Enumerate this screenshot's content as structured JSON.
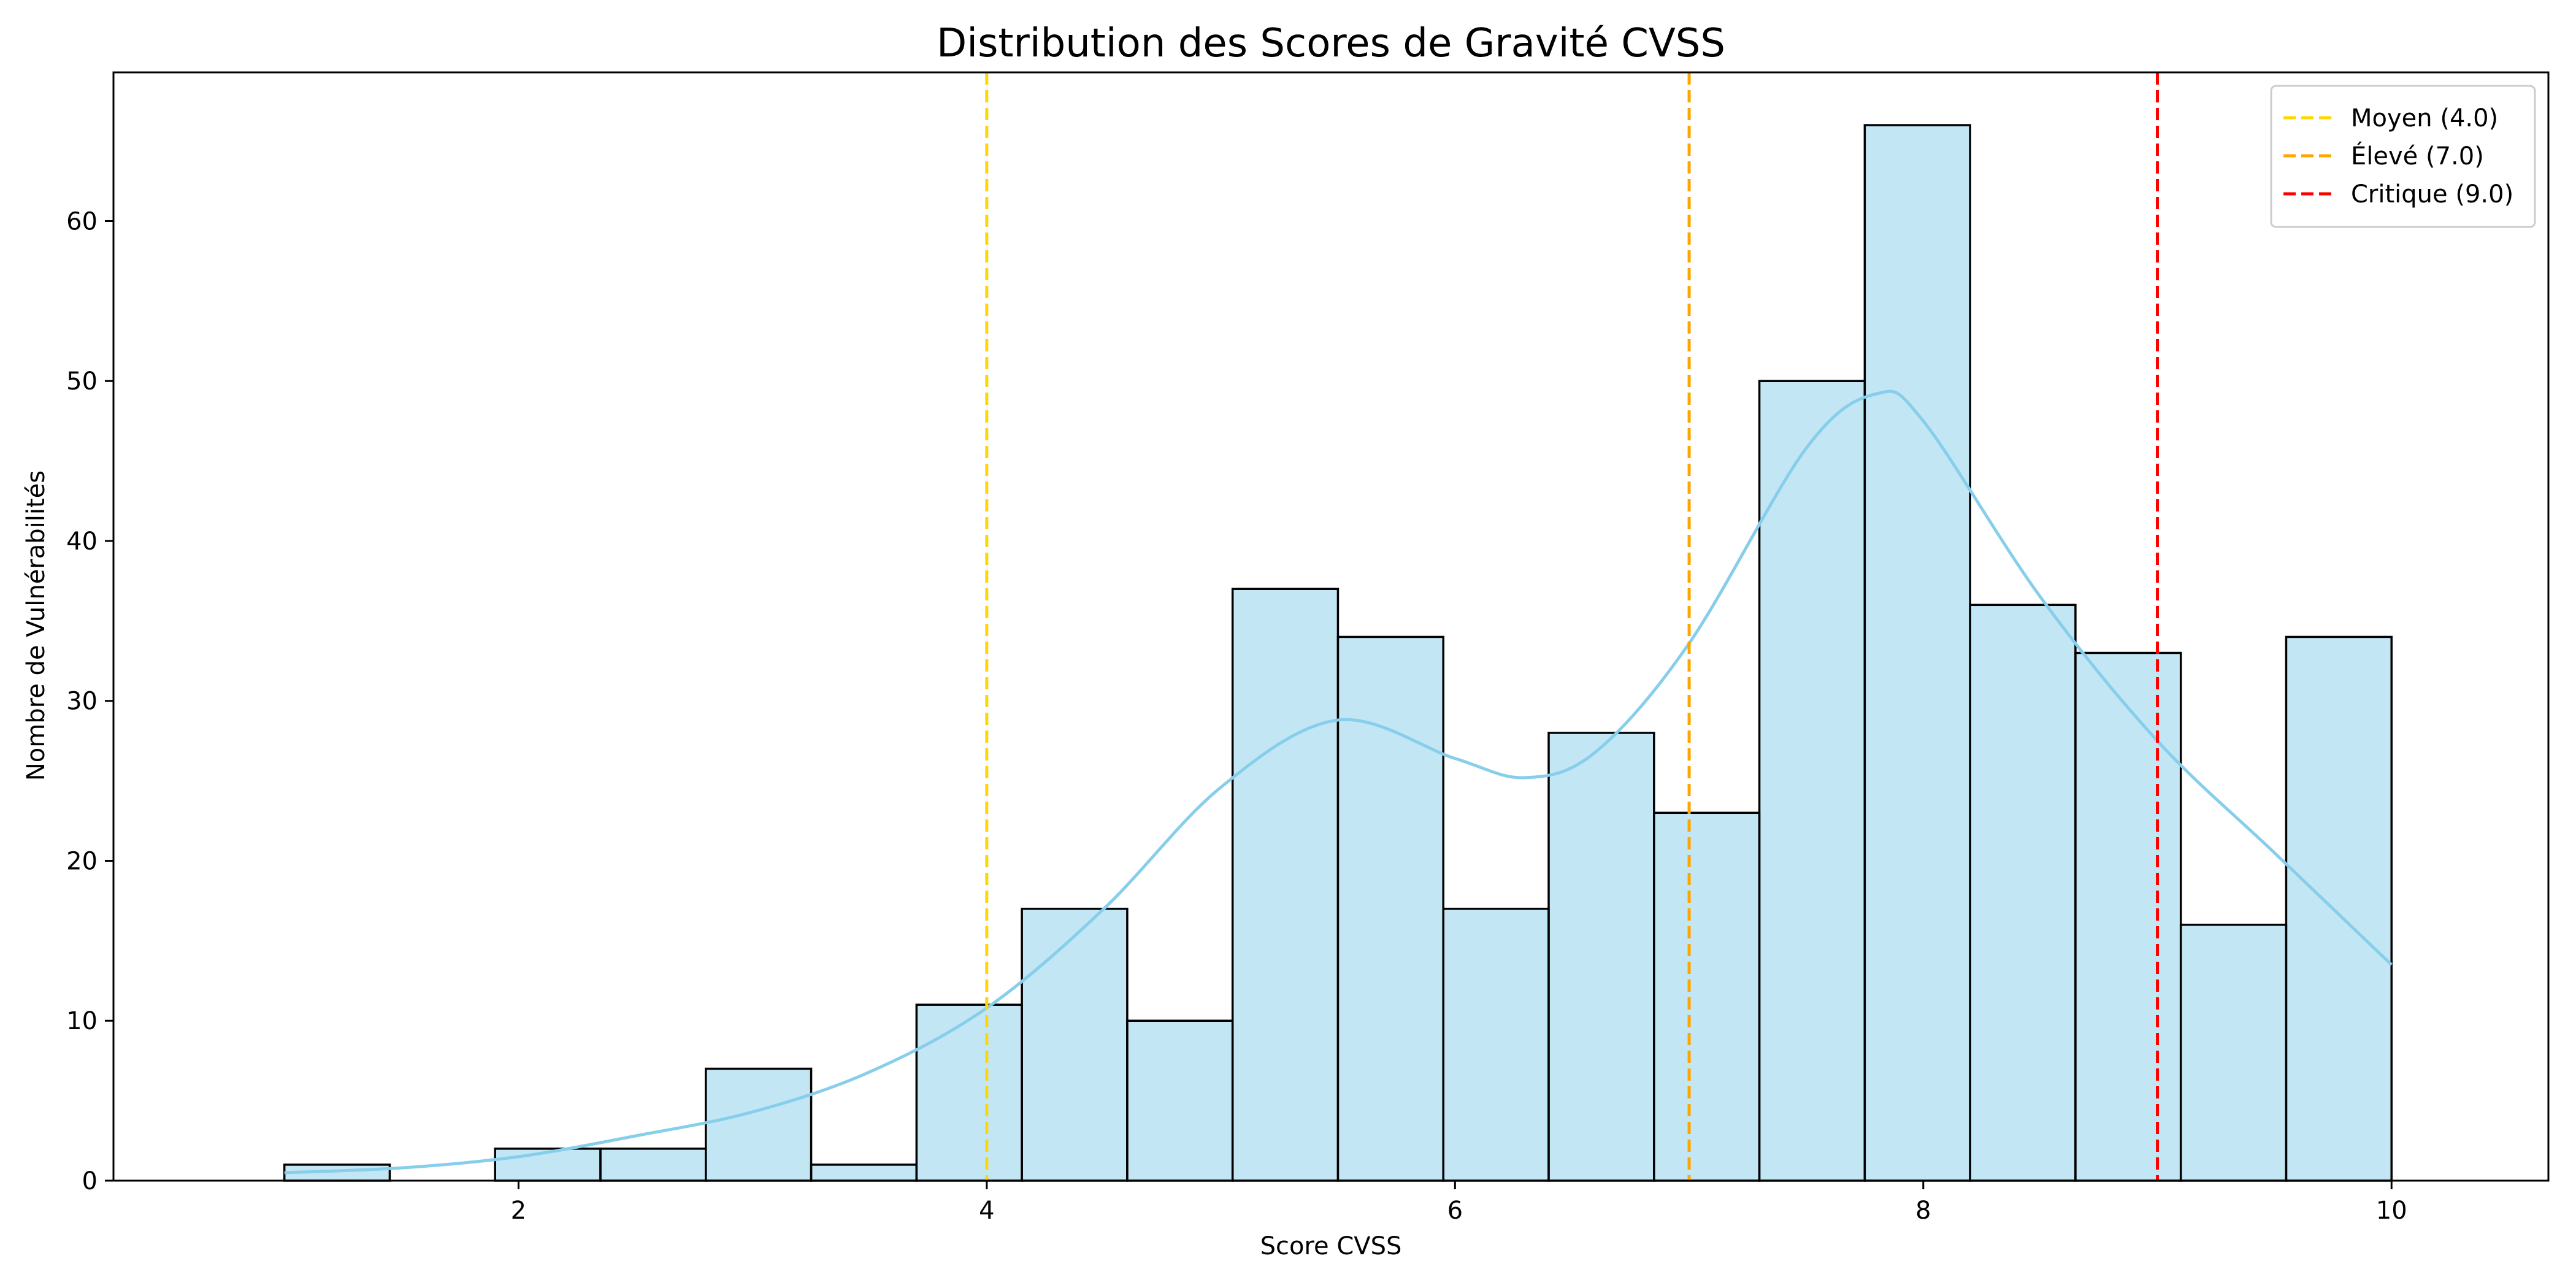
{
  "chart_data": {
    "type": "bar",
    "title": "Distribution des Scores de Gravité CVSS",
    "xlabel": "Score CVSS",
    "ylabel": "Nombre de Vulnérabilités",
    "xlim": [
      0.27,
      10.67
    ],
    "ylim": [
      0,
      69.3
    ],
    "x_ticks": [
      2,
      4,
      6,
      8,
      10
    ],
    "y_ticks": [
      0,
      10,
      20,
      30,
      40,
      50,
      60
    ],
    "grid": false,
    "legend_position": "top-right",
    "bar_color": "#87ceeb",
    "bar_alpha": 0.5,
    "bar_edge_color": "#000000",
    "bins": {
      "start": 1.0,
      "width": 0.45,
      "values": [
        1,
        0,
        2,
        2,
        7,
        1,
        11,
        17,
        10,
        37,
        34,
        17,
        28,
        23,
        50,
        66,
        36,
        33,
        16,
        34
      ]
    },
    "kde": {
      "color": "#87ceeb",
      "x": [
        1.0,
        1.5,
        2.0,
        2.5,
        3.0,
        3.5,
        4.0,
        4.5,
        5.0,
        5.5,
        6.0,
        6.3,
        6.6,
        7.0,
        7.5,
        7.8,
        8.0,
        8.5,
        9.0,
        9.5,
        10.0
      ],
      "y": [
        0.5,
        0.8,
        1.5,
        2.8,
        4.3,
        6.8,
        10.8,
        17.0,
        24.6,
        28.8,
        26.4,
        25.2,
        26.8,
        33.6,
        45.8,
        49.2,
        47.5,
        36.5,
        27.5,
        20.5,
        13.5
      ]
    },
    "thresholds": [
      {
        "name": "Moyen (4.0)",
        "x": 4.0,
        "color": "#ffd700"
      },
      {
        "name": "Élevé (7.0)",
        "x": 7.0,
        "color": "#ffa500"
      },
      {
        "name": "Critique (9.0)",
        "x": 9.0,
        "color": "#ff0000"
      }
    ]
  }
}
